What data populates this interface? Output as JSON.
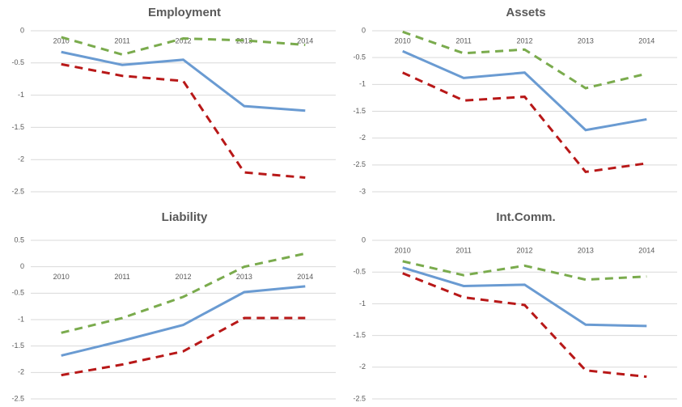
{
  "chart_data": [
    {
      "type": "line",
      "title": "Employment",
      "categories": [
        "2010",
        "2011",
        "2012",
        "2013",
        "2014"
      ],
      "series": [
        {
          "color": "#6a9bd2",
          "dash": false,
          "values": [
            -0.33,
            -0.53,
            -0.45,
            -1.17,
            -1.24
          ]
        },
        {
          "color": "#b81818",
          "dash": true,
          "values": [
            -0.52,
            -0.7,
            -0.78,
            -2.2,
            -2.28
          ]
        },
        {
          "color": "#7aab4d",
          "dash": true,
          "values": [
            -0.1,
            -0.37,
            -0.12,
            -0.15,
            -0.22
          ]
        }
      ],
      "ylim": [
        -2.5,
        0
      ],
      "yticks": [
        0,
        -0.5,
        -1,
        -1.5,
        -2,
        -2.5
      ],
      "grid": true
    },
    {
      "type": "line",
      "title": "Assets",
      "categories": [
        "2010",
        "2011",
        "2012",
        "2013",
        "2014"
      ],
      "series": [
        {
          "color": "#6a9bd2",
          "dash": false,
          "values": [
            -0.38,
            -0.88,
            -0.78,
            -1.85,
            -1.65
          ]
        },
        {
          "color": "#b81818",
          "dash": true,
          "values": [
            -0.78,
            -1.3,
            -1.23,
            -2.63,
            -2.47
          ]
        },
        {
          "color": "#7aab4d",
          "dash": true,
          "values": [
            -0.02,
            -0.42,
            -0.35,
            -1.07,
            -0.8
          ]
        }
      ],
      "ylim": [
        -3,
        0
      ],
      "yticks": [
        0,
        -0.5,
        -1,
        -1.5,
        -2,
        -2.5,
        -3
      ],
      "grid": true
    },
    {
      "type": "line",
      "title": "Liability",
      "categories": [
        "2010",
        "2011",
        "2012",
        "2013",
        "2014"
      ],
      "series": [
        {
          "color": "#6a9bd2",
          "dash": false,
          "values": [
            -1.68,
            -1.4,
            -1.1,
            -0.48,
            -0.37
          ]
        },
        {
          "color": "#b81818",
          "dash": true,
          "values": [
            -2.05,
            -1.85,
            -1.6,
            -0.97,
            -0.97
          ]
        },
        {
          "color": "#7aab4d",
          "dash": true,
          "values": [
            -1.25,
            -0.97,
            -0.57,
            0.0,
            0.25
          ]
        }
      ],
      "ylim": [
        -2.5,
        0.5
      ],
      "yticks": [
        0.5,
        0,
        -0.5,
        -1,
        -1.5,
        -2,
        -2.5
      ],
      "grid": true
    },
    {
      "type": "line",
      "title": "Int.Comm.",
      "categories": [
        "2010",
        "2011",
        "2012",
        "2013",
        "2014"
      ],
      "series": [
        {
          "color": "#6a9bd2",
          "dash": false,
          "values": [
            -0.43,
            -0.72,
            -0.7,
            -1.33,
            -1.35
          ]
        },
        {
          "color": "#b81818",
          "dash": true,
          "values": [
            -0.52,
            -0.9,
            -1.02,
            -2.05,
            -2.15
          ]
        },
        {
          "color": "#7aab4d",
          "dash": true,
          "values": [
            -0.33,
            -0.55,
            -0.4,
            -0.62,
            -0.57
          ]
        }
      ],
      "ylim": [
        -2.5,
        0
      ],
      "yticks": [
        0,
        -0.5,
        -1,
        -1.5,
        -2,
        -2.5
      ],
      "grid": true
    }
  ]
}
